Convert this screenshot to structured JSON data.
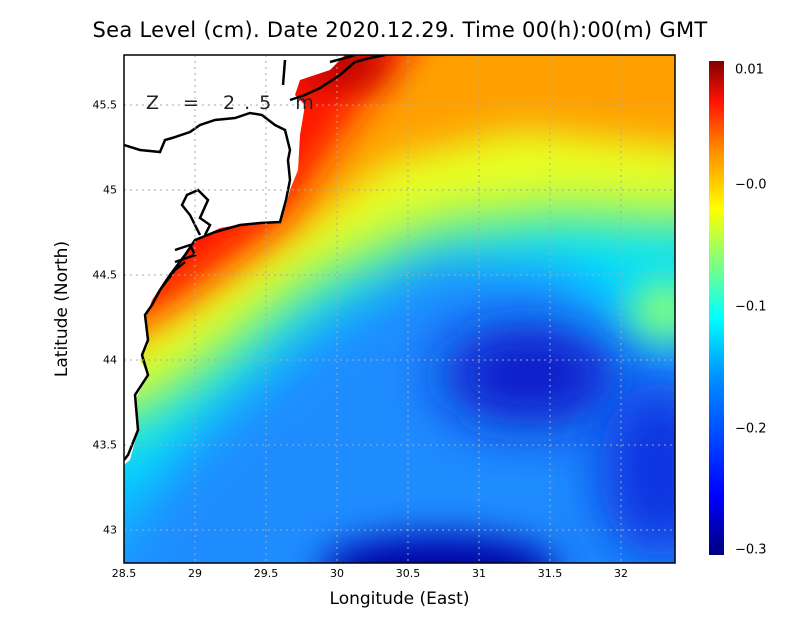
{
  "title": "Sea Level (cm). Date 2020.12.29. Time 00(h):00(m) GMT",
  "depth_label": "Z = 2.5 m",
  "xaxis": {
    "label": "Longitude (East)",
    "ticks": [
      "28.5",
      "29",
      "29.5",
      "30",
      "30.5",
      "31",
      "31.5",
      "32"
    ],
    "range": [
      28.5,
      32.38
    ]
  },
  "yaxis": {
    "label": "Latitude (North)",
    "ticks": [
      "45.5",
      "45",
      "44.5",
      "44",
      "43.5",
      "43"
    ],
    "range": [
      42.8,
      45.79
    ]
  },
  "colorbar": {
    "ticks": [
      "0.01",
      "−0.0",
      "−0.1",
      "−0.2",
      "−0.3"
    ],
    "range": [
      -0.3,
      0.01
    ],
    "colormap": "jet"
  },
  "colors": {
    "land": "#ffffff",
    "coast": "#000000",
    "grid": "#aaaaaa"
  }
}
